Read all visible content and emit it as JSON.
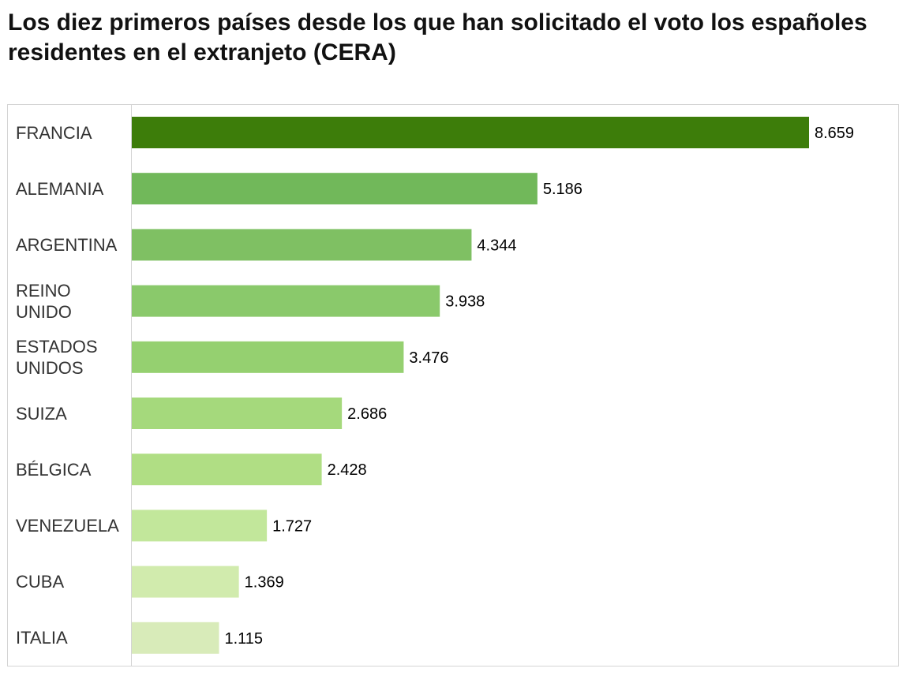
{
  "chart_data": {
    "type": "bar",
    "orientation": "horizontal",
    "title": "Los diez primeros países desde los que han solicitado el voto los españoles residentes en el extranjeto (CERA)",
    "xlabel": "",
    "ylabel": "",
    "categories": [
      "FRANCIA",
      "ALEMANIA",
      "ARGENTINA",
      "REINO UNIDO",
      "ESTADOS UNIDOS",
      "SUIZA",
      "BÉLGICA",
      "VENEZUELA",
      "CUBA",
      "ITALIA"
    ],
    "values": [
      8659,
      5186,
      4344,
      3938,
      3476,
      2686,
      2428,
      1727,
      1369,
      1115
    ],
    "value_labels": [
      "8.659",
      "5.186",
      "4.344",
      "3.938",
      "3.476",
      "2.686",
      "2.428",
      "1.727",
      "1.369",
      "1.115"
    ],
    "colors": [
      "#3d7d0a",
      "#71b85a",
      "#7fc063",
      "#8ac96b",
      "#95d070",
      "#a5d97c",
      "#b0de84",
      "#c2e79b",
      "#d1ebad",
      "#d8ebb9"
    ],
    "xlim": [
      0,
      8659
    ],
    "grid": false,
    "legend": "none"
  }
}
